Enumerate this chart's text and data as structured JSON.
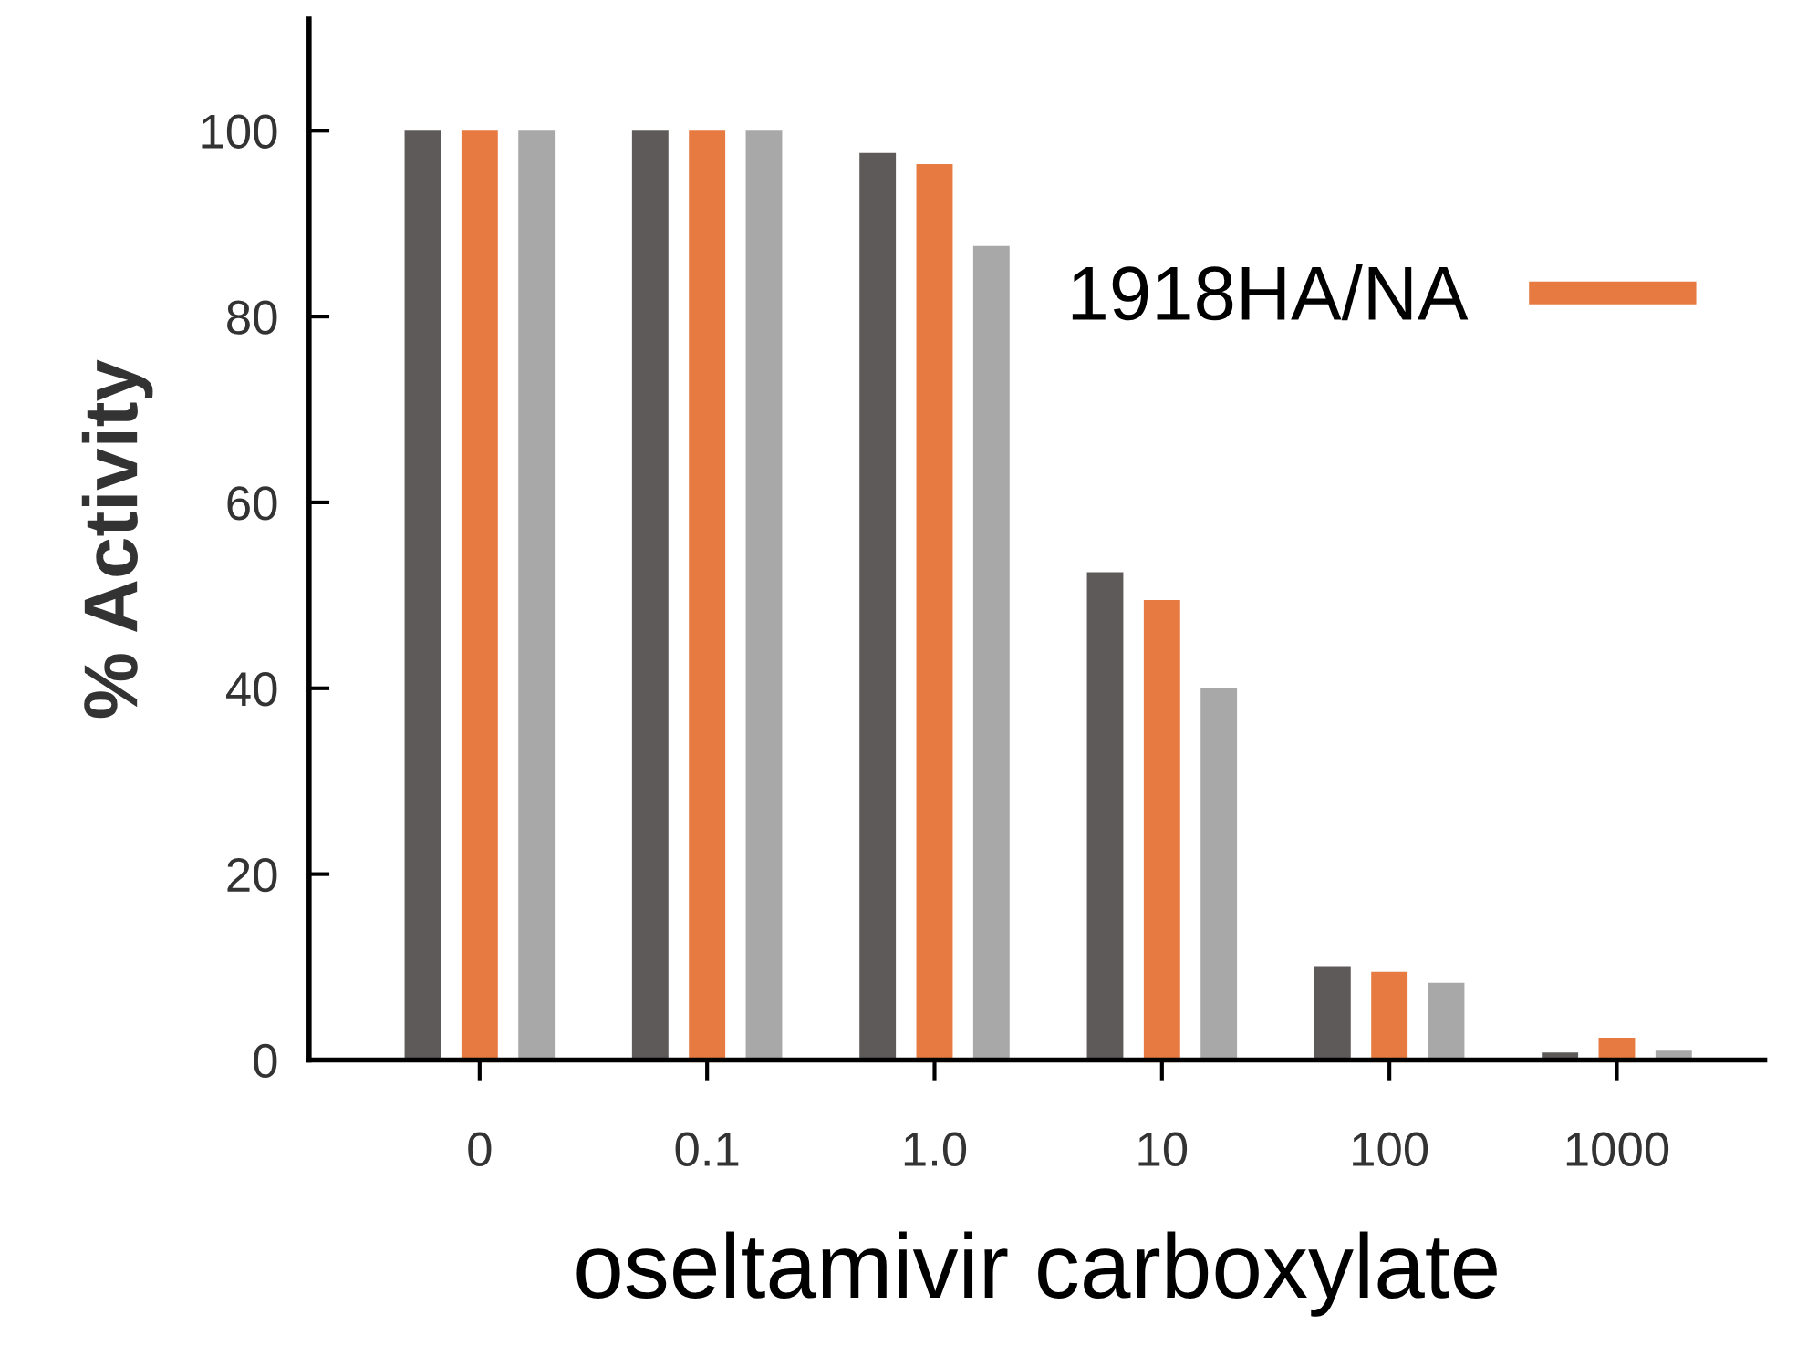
{
  "chart_data": {
    "type": "bar",
    "xlabel": "oseltamivir carboxylate",
    "ylabel": "% Activity",
    "categories": [
      "0",
      "0.1",
      "1.0",
      "10",
      "100",
      "1000"
    ],
    "series": [
      {
        "color": "#5f5a5a",
        "values": [
          100,
          100,
          97.6,
          52.5,
          10.1,
          0.8
        ]
      },
      {
        "name": "1918HA/NA",
        "color": "#e77a40",
        "values": [
          100,
          100,
          96.4,
          49.5,
          9.5,
          2.4
        ]
      },
      {
        "color": "#a8a8a8",
        "values": [
          100,
          100,
          87.6,
          40,
          8.3,
          1.0
        ]
      }
    ],
    "ylim": [
      0,
      112
    ],
    "yticks": [
      0,
      20,
      40,
      60,
      80,
      100
    ],
    "grid": false,
    "legend": "top right"
  }
}
